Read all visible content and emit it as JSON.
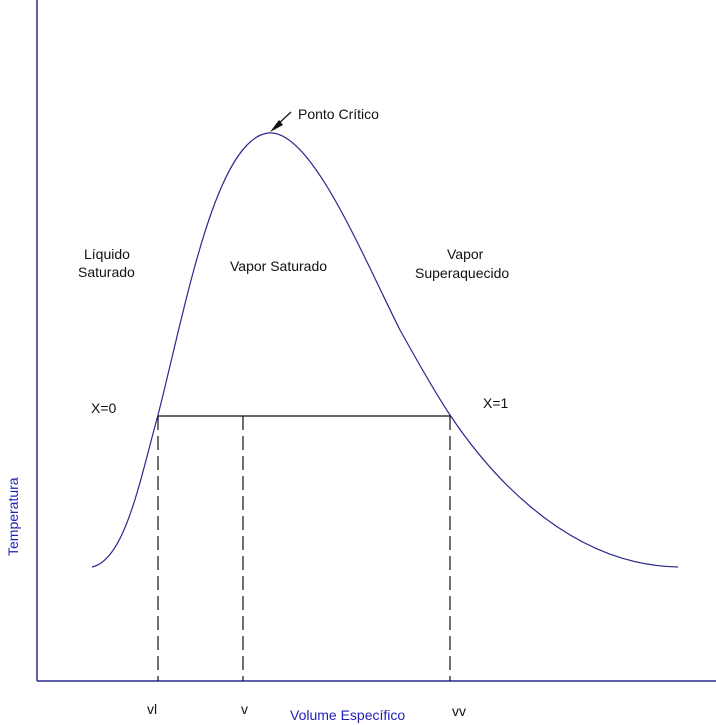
{
  "colors": {
    "axis": "#2a2a8c",
    "curve": "#2a2a8c",
    "axis_label": "#1f1fb4",
    "line": "#111111"
  },
  "axes": {
    "ylabel": "Temperatura",
    "xlabel": "Volume Específico"
  },
  "regions": {
    "liquid_line1": "Líquido",
    "liquid_line2": "Saturado",
    "vapor_saturado": "Vapor Saturado",
    "vapor_sup_line1": "Vapor",
    "vapor_sup_line2": "Superaquecido"
  },
  "annotations": {
    "ponto_critico": "Ponto Crítico",
    "x0": "X=0",
    "x1": "X=1"
  },
  "ticks": {
    "vl": "vl",
    "v": "v",
    "vv": "vv"
  }
}
